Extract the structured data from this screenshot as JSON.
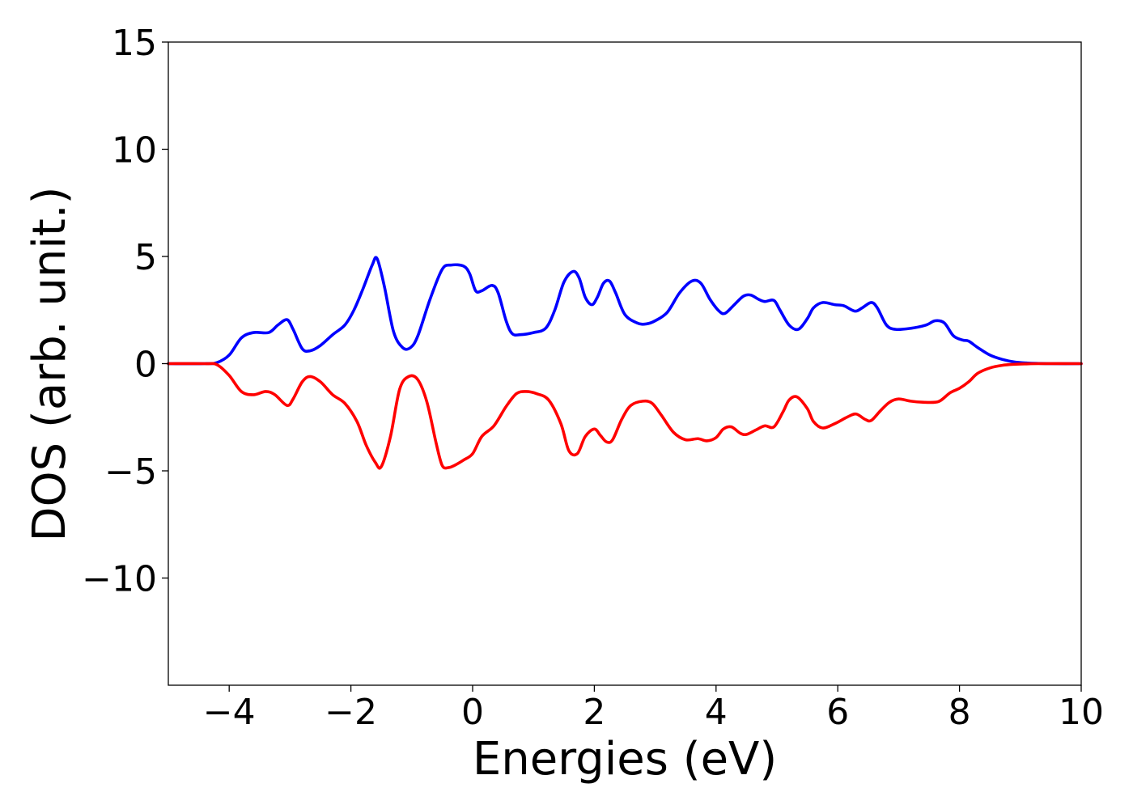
{
  "chart_data": {
    "type": "line",
    "title": "",
    "xlabel": "Energies (eV)",
    "ylabel": "DOS (arb. unit.)",
    "xlim": [
      -5,
      10
    ],
    "ylim": [
      -15,
      15
    ],
    "xticks": [
      -4,
      -2,
      0,
      2,
      4,
      6,
      8,
      10
    ],
    "xtick_labels": [
      "−4",
      "−2",
      "0",
      "2",
      "4",
      "6",
      "8",
      "10"
    ],
    "yticks": [
      -10,
      -5,
      0,
      5,
      10,
      15
    ],
    "ytick_labels": [
      "−10",
      "−5",
      "0",
      "5",
      "10",
      "15"
    ],
    "grid": false,
    "legend": "none",
    "series": [
      {
        "color": "#0000ff",
        "x": [
          -5.0,
          -4.4,
          -4.2,
          -4.0,
          -3.8,
          -3.6,
          -3.35,
          -3.2,
          -3.05,
          -2.95,
          -2.8,
          -2.67,
          -2.5,
          -2.3,
          -2.1,
          -1.95,
          -1.8,
          -1.65,
          -1.57,
          -1.45,
          -1.3,
          -1.15,
          -1.02,
          -0.9,
          -0.7,
          -0.5,
          -0.35,
          -0.15,
          -0.05,
          0.05,
          0.15,
          0.32,
          0.42,
          0.55,
          0.65,
          0.78,
          1.0,
          1.2,
          1.35,
          1.5,
          1.65,
          1.75,
          1.85,
          1.96,
          2.05,
          2.15,
          2.25,
          2.35,
          2.5,
          2.7,
          2.85,
          3.0,
          3.2,
          3.4,
          3.6,
          3.75,
          3.9,
          4.05,
          4.15,
          4.3,
          4.45,
          4.57,
          4.7,
          4.8,
          4.95,
          5.05,
          5.2,
          5.35,
          5.5,
          5.6,
          5.75,
          5.95,
          6.1,
          6.28,
          6.4,
          6.55,
          6.65,
          6.8,
          6.95,
          7.2,
          7.45,
          7.6,
          7.75,
          7.9,
          8.05,
          8.15,
          8.3,
          8.5,
          8.7,
          8.9,
          9.1,
          9.3,
          9.5,
          10.0
        ],
        "y": [
          0,
          0,
          0.05,
          0.4,
          1.2,
          1.45,
          1.45,
          1.8,
          2.05,
          1.6,
          0.7,
          0.6,
          0.85,
          1.35,
          1.8,
          2.5,
          3.5,
          4.6,
          4.9,
          3.6,
          1.5,
          0.75,
          0.75,
          1.3,
          3.0,
          4.4,
          4.6,
          4.55,
          4.2,
          3.4,
          3.4,
          3.65,
          3.3,
          2.0,
          1.4,
          1.35,
          1.45,
          1.65,
          2.5,
          3.8,
          4.3,
          4.0,
          3.1,
          2.75,
          3.1,
          3.75,
          3.85,
          3.3,
          2.3,
          1.9,
          1.85,
          2.0,
          2.4,
          3.3,
          3.85,
          3.75,
          3.0,
          2.45,
          2.35,
          2.75,
          3.15,
          3.2,
          3.0,
          2.9,
          2.95,
          2.5,
          1.8,
          1.6,
          2.1,
          2.6,
          2.85,
          2.75,
          2.7,
          2.45,
          2.6,
          2.85,
          2.6,
          1.8,
          1.6,
          1.65,
          1.8,
          2.0,
          1.9,
          1.3,
          1.1,
          1.05,
          0.75,
          0.4,
          0.2,
          0.08,
          0.03,
          0.01,
          0,
          0
        ]
      },
      {
        "color": "#ff0000",
        "x": [
          -5.0,
          -4.4,
          -4.2,
          -4.0,
          -3.8,
          -3.6,
          -3.4,
          -3.25,
          -3.05,
          -2.95,
          -2.8,
          -2.67,
          -2.5,
          -2.3,
          -2.1,
          -1.9,
          -1.75,
          -1.6,
          -1.5,
          -1.35,
          -1.2,
          -1.05,
          -0.9,
          -0.75,
          -0.6,
          -0.5,
          -0.4,
          -0.3,
          -0.15,
          0.0,
          0.15,
          0.35,
          0.55,
          0.72,
          0.88,
          1.05,
          1.25,
          1.45,
          1.58,
          1.72,
          1.85,
          2.0,
          2.1,
          2.2,
          2.3,
          2.45,
          2.6,
          2.8,
          2.95,
          3.1,
          3.3,
          3.5,
          3.7,
          3.85,
          4.0,
          4.12,
          4.25,
          4.4,
          4.5,
          4.65,
          4.8,
          4.95,
          5.1,
          5.2,
          5.33,
          5.5,
          5.6,
          5.75,
          5.95,
          6.15,
          6.3,
          6.45,
          6.55,
          6.7,
          6.85,
          7.0,
          7.2,
          7.4,
          7.6,
          7.7,
          7.85,
          8.0,
          8.15,
          8.3,
          8.5,
          8.7,
          8.9,
          9.1,
          9.3,
          10.0
        ],
        "y": [
          0,
          0,
          -0.05,
          -0.55,
          -1.3,
          -1.45,
          -1.3,
          -1.45,
          -1.95,
          -1.65,
          -0.85,
          -0.6,
          -0.85,
          -1.45,
          -1.85,
          -2.7,
          -3.8,
          -4.6,
          -4.8,
          -3.4,
          -1.2,
          -0.6,
          -0.75,
          -1.8,
          -3.7,
          -4.75,
          -4.85,
          -4.75,
          -4.5,
          -4.2,
          -3.4,
          -2.9,
          -2.0,
          -1.4,
          -1.3,
          -1.4,
          -1.7,
          -2.8,
          -4.05,
          -4.2,
          -3.4,
          -3.05,
          -3.35,
          -3.65,
          -3.55,
          -2.6,
          -1.95,
          -1.75,
          -1.85,
          -2.4,
          -3.2,
          -3.55,
          -3.5,
          -3.6,
          -3.45,
          -3.05,
          -2.95,
          -3.25,
          -3.3,
          -3.1,
          -2.9,
          -2.95,
          -2.25,
          -1.7,
          -1.55,
          -2.1,
          -2.7,
          -3.0,
          -2.8,
          -2.5,
          -2.35,
          -2.6,
          -2.65,
          -2.2,
          -1.8,
          -1.65,
          -1.75,
          -1.8,
          -1.8,
          -1.7,
          -1.35,
          -1.15,
          -0.85,
          -0.45,
          -0.2,
          -0.08,
          -0.03,
          -0.01,
          0,
          0
        ]
      }
    ]
  }
}
